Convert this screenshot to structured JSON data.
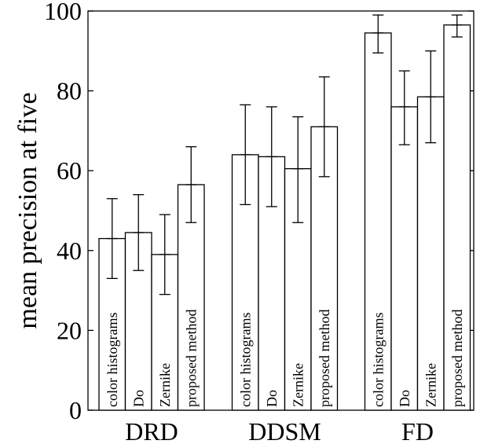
{
  "chart_data": {
    "type": "bar",
    "title": "",
    "xlabel": "",
    "ylabel": "mean precision at five",
    "ylim": [
      0,
      100
    ],
    "yticks": [
      0,
      20,
      40,
      60,
      80,
      100
    ],
    "grid": false,
    "legend": "none",
    "categories": [
      "DRD",
      "DDSM",
      "FD"
    ],
    "series": [
      {
        "name": "color histograms",
        "values": [
          43,
          64,
          94.5
        ],
        "error_low": [
          33,
          51.5,
          89.5
        ],
        "error_high": [
          53,
          76.5,
          99
        ]
      },
      {
        "name": "Do",
        "values": [
          44.5,
          63.5,
          76
        ],
        "error_low": [
          35,
          51,
          66.5
        ],
        "error_high": [
          54,
          76,
          85
        ]
      },
      {
        "name": "Zernike",
        "values": [
          39,
          60.5,
          78.5
        ],
        "error_low": [
          29,
          47,
          67
        ],
        "error_high": [
          49,
          73.5,
          90
        ]
      },
      {
        "name": "proposed method",
        "values": [
          56.5,
          71,
          96.5
        ],
        "error_low": [
          47,
          58.5,
          93.5
        ],
        "error_high": [
          66,
          83.5,
          99
        ]
      }
    ],
    "colors": {
      "bar_fill": "#ffffff",
      "bar_stroke": "#000000",
      "text": "#000000"
    }
  }
}
